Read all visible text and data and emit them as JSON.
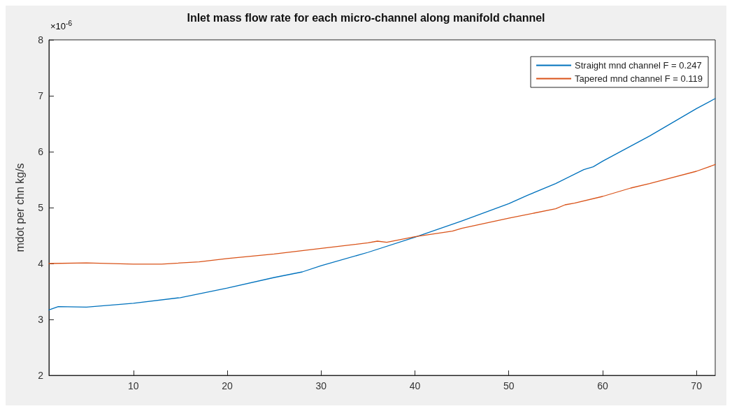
{
  "chart_data": {
    "type": "line",
    "title": "Inlet mass flow rate for each micro-channel along manifold channel",
    "ylabel": "mdot per chn kg/s",
    "annotations": [
      "×10$^{-6}$"
    ],
    "xlim": [
      1,
      72
    ],
    "xticks": [
      10,
      20,
      30,
      40,
      50,
      60,
      70
    ],
    "ylim": [
      2,
      8
    ],
    "yticks": [
      2,
      3,
      4,
      5,
      6,
      7,
      8
    ],
    "grid": false,
    "legend": "top right",
    "marker": "none",
    "line_style": "solid",
    "series": [
      {
        "name": "Straight mnd channel F = 0.247",
        "color": "#0072bd",
        "x": [
          1,
          2,
          5,
          10,
          15,
          20,
          25,
          28,
          30,
          35,
          40,
          45,
          50,
          52,
          55,
          58,
          59,
          60,
          65,
          70,
          72
        ],
        "values": [
          3.17,
          3.23,
          3.22,
          3.29,
          3.39,
          3.56,
          3.75,
          3.85,
          3.96,
          4.2,
          4.47,
          4.76,
          5.07,
          5.22,
          5.43,
          5.68,
          5.73,
          5.83,
          6.28,
          6.77,
          6.95
        ]
      },
      {
        "name": "Tapered mnd channel F = 0.119",
        "color": "#d95319",
        "x": [
          1,
          5,
          10,
          13,
          17,
          20,
          25,
          30,
          35,
          36,
          37,
          40,
          44,
          45,
          50,
          55,
          56,
          57,
          60,
          63,
          65,
          70,
          72
        ],
        "values": [
          4.0,
          4.01,
          3.99,
          3.99,
          4.03,
          4.09,
          4.17,
          4.27,
          4.37,
          4.4,
          4.38,
          4.48,
          4.58,
          4.63,
          4.81,
          4.98,
          5.05,
          5.08,
          5.2,
          5.35,
          5.43,
          5.65,
          5.77
        ]
      }
    ]
  }
}
